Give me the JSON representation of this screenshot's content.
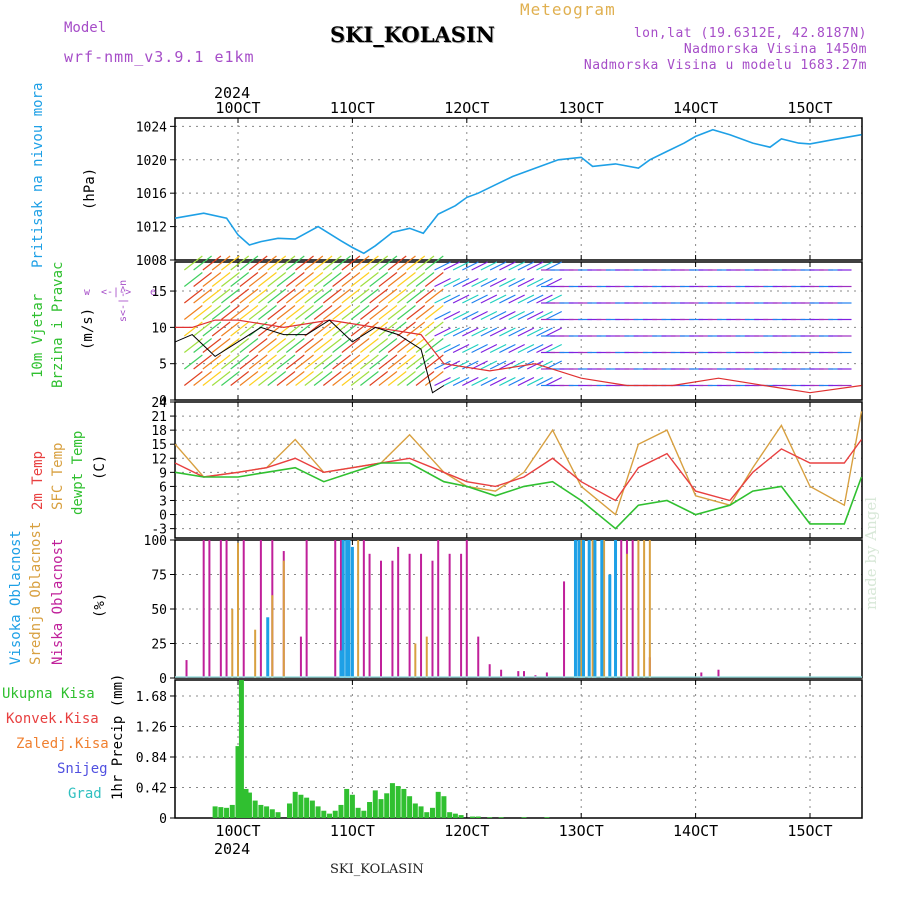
{
  "header": {
    "model_label": "Model",
    "model_value": "wrf-nmm_v3.9.1 e1km",
    "product": "Meteogram",
    "station": "SKI_KOLASIN",
    "lonlat": "lon,lat (19.6312E, 42.8187N)",
    "elevation": "Nadmorska Visina 1450m",
    "model_elevation": "Nadmorska Visina u modelu 1683.27m"
  },
  "footer": {
    "station": "SKI_KOLASIN",
    "credit": "made by Angel"
  },
  "time_axis": {
    "year": "2024",
    "labels": [
      "10OCT",
      "11OCT",
      "12OCT",
      "13OCT",
      "14OCT",
      "15OCT"
    ]
  },
  "colors": {
    "pressure": "#1ea0e6",
    "wind_speed": "#000000",
    "wind_gust": "#e03030",
    "t2m": "#e84040",
    "sfc": "#d8a040",
    "dew": "#30c030",
    "cloud_high": "#1ea0e6",
    "cloud_mid": "#d8a040",
    "cloud_low": "#c0209a",
    "precip_total": "#30c030",
    "precip_conv": "#e84040",
    "precip_frozen": "#f08030",
    "snow": "#5050e0",
    "hail": "#30c0c0"
  },
  "chart_data": [
    {
      "type": "line",
      "panel": "pressure",
      "labels": [
        "Pritisak na nivou mora",
        "(hPa)"
      ],
      "ylim": [
        1008,
        1025
      ],
      "yticks": [
        1008,
        1012,
        1016,
        1020,
        1024
      ],
      "series": [
        {
          "name": "Pritisak na nivou mora",
          "x": [
            -0.55,
            -0.3,
            -0.1,
            0.0,
            0.1,
            0.2,
            0.35,
            0.5,
            0.7,
            0.9,
            1.0,
            1.1,
            1.2,
            1.35,
            1.5,
            1.62,
            1.75,
            1.9,
            2.0,
            2.1,
            2.25,
            2.4,
            2.6,
            2.8,
            3.0,
            3.1,
            3.3,
            3.5,
            3.6,
            3.75,
            3.9,
            4.0,
            4.15,
            4.3,
            4.5,
            4.65,
            4.75,
            4.9,
            5.0,
            5.2,
            5.45
          ],
          "values": [
            1013.0,
            1013.6,
            1013.0,
            1011.0,
            1009.8,
            1010.2,
            1010.6,
            1010.5,
            1012.0,
            1010.3,
            1009.5,
            1008.8,
            1009.7,
            1011.3,
            1011.8,
            1011.2,
            1013.5,
            1014.5,
            1015.5,
            1016.0,
            1017.0,
            1018.0,
            1019.0,
            1020.0,
            1020.3,
            1019.2,
            1019.5,
            1019.0,
            1020.0,
            1021.0,
            1022.0,
            1022.8,
            1023.6,
            1023.0,
            1022.0,
            1021.5,
            1022.5,
            1022.0,
            1021.9,
            1022.4,
            1023.0
          ]
        }
      ]
    },
    {
      "type": "line",
      "panel": "wind",
      "labels": [
        "10m Vjetar",
        "Brzina i Pravac",
        "(m/s)"
      ],
      "ylim": [
        0,
        19
      ],
      "yticks": [
        0,
        5,
        10,
        15
      ],
      "direction_legend": [
        "w",
        "<-|->",
        "e",
        "s<-|->n"
      ],
      "series": [
        {
          "name": "brzina",
          "x": [
            -0.55,
            -0.4,
            -0.2,
            0.0,
            0.2,
            0.4,
            0.6,
            0.8,
            1.0,
            1.2,
            1.4,
            1.6,
            1.7,
            1.8
          ],
          "values": [
            8,
            9,
            6,
            8,
            10,
            9,
            9,
            11,
            8,
            10,
            9,
            7,
            1,
            2
          ]
        },
        {
          "name": "udar",
          "x": [
            -0.55,
            -0.4,
            -0.2,
            0.0,
            0.4,
            0.8,
            1.2,
            1.6,
            1.8,
            2.2,
            2.6,
            3.0,
            3.4,
            3.8,
            4.2,
            4.6,
            5.0,
            5.45
          ],
          "values": [
            10,
            10,
            11,
            11,
            10,
            11,
            10,
            9,
            5,
            4,
            5,
            3,
            2,
            2,
            3,
            2,
            1,
            2
          ]
        }
      ]
    },
    {
      "type": "line",
      "panel": "temperature",
      "labels": [
        "2m Temp",
        "SFC Temp",
        "dewpt Temp",
        "(C)"
      ],
      "ylim": [
        -5,
        24
      ],
      "yticks": [
        -3,
        0,
        3,
        6,
        9,
        12,
        15,
        18,
        21,
        24
      ],
      "series": [
        {
          "name": "2m Temp",
          "x": [
            -0.55,
            -0.3,
            0.0,
            0.25,
            0.5,
            0.75,
            1.0,
            1.25,
            1.5,
            1.8,
            2.0,
            2.25,
            2.5,
            2.75,
            3.0,
            3.3,
            3.5,
            3.75,
            4.0,
            4.3,
            4.5,
            4.75,
            5.0,
            5.3,
            5.45
          ],
          "values": [
            11,
            8,
            9,
            10,
            12,
            9,
            10,
            11,
            12,
            9,
            7,
            6,
            8,
            12,
            7,
            3,
            10,
            13,
            5,
            3,
            9,
            14,
            11,
            11,
            16
          ]
        },
        {
          "name": "SFC Temp",
          "x": [
            -0.55,
            -0.3,
            0.0,
            0.25,
            0.5,
            0.75,
            1.0,
            1.25,
            1.5,
            1.8,
            2.0,
            2.25,
            2.5,
            2.75,
            3.0,
            3.3,
            3.5,
            3.75,
            4.0,
            4.3,
            4.5,
            4.75,
            5.0,
            5.3,
            5.45
          ],
          "values": [
            15,
            8,
            9,
            10,
            16,
            9,
            10,
            11,
            17,
            9,
            6,
            5,
            9,
            18,
            6,
            0,
            15,
            18,
            4,
            2,
            10,
            19,
            6,
            2,
            22
          ]
        },
        {
          "name": "dewpt Temp",
          "x": [
            -0.55,
            -0.3,
            0.0,
            0.25,
            0.5,
            0.75,
            1.0,
            1.25,
            1.5,
            1.8,
            2.0,
            2.25,
            2.5,
            2.75,
            3.0,
            3.3,
            3.5,
            3.75,
            4.0,
            4.3,
            4.5,
            4.75,
            5.0,
            5.3,
            5.45
          ],
          "values": [
            9,
            8,
            8,
            9,
            10,
            7,
            9,
            11,
            11,
            7,
            6,
            4,
            6,
            7,
            3,
            -3,
            2,
            3,
            0,
            2,
            5,
            6,
            -2,
            -2,
            8
          ]
        }
      ]
    },
    {
      "type": "bar",
      "panel": "clouds",
      "labels": [
        "Visoka Oblacnost",
        "Srednja Oblacnost",
        "Niska Oblacnost",
        "(%)"
      ],
      "ylim": [
        0,
        100
      ],
      "yticks": [
        0,
        25,
        50,
        75,
        100
      ],
      "series": [
        {
          "name": "Visoka Oblacnost",
          "x": [
            0.26,
            0.9,
            0.92,
            0.95,
            0.97,
            1.0,
            2.95,
            2.98,
            3.02,
            3.07,
            3.12,
            3.18,
            3.25,
            3.3
          ],
          "values": [
            44,
            20,
            100,
            100,
            100,
            95,
            100,
            100,
            100,
            100,
            100,
            100,
            75,
            100
          ]
        },
        {
          "name": "Srednja Oblacnost",
          "x": [
            -0.05,
            0.0,
            0.15,
            0.3,
            0.4,
            0.95,
            1.05,
            1.55,
            1.65,
            3.0,
            3.1,
            3.2,
            3.3,
            3.4,
            3.5,
            3.55,
            3.6
          ],
          "values": [
            50,
            98,
            35,
            60,
            85,
            80,
            100,
            25,
            30,
            100,
            100,
            100,
            100,
            90,
            100,
            100,
            100
          ]
        },
        {
          "name": "Niska Oblacnost",
          "x": [
            -0.45,
            -0.3,
            -0.25,
            -0.15,
            -0.1,
            0.05,
            0.2,
            0.3,
            0.4,
            0.55,
            0.6,
            0.85,
            0.9,
            1.1,
            1.15,
            1.25,
            1.35,
            1.4,
            1.5,
            1.6,
            1.7,
            1.75,
            1.85,
            1.95,
            2.0,
            2.1,
            2.2,
            2.3,
            2.45,
            2.5,
            2.6,
            2.7,
            2.85,
            3.3,
            3.35,
            3.4,
            3.45,
            3.6,
            4.05,
            4.2
          ],
          "values": [
            13,
            100,
            100,
            100,
            100,
            100,
            100,
            100,
            92,
            30,
            100,
            100,
            100,
            100,
            90,
            85,
            85,
            95,
            90,
            90,
            85,
            100,
            90,
            90,
            100,
            30,
            10,
            6,
            5,
            5,
            2,
            4,
            70,
            100,
            100,
            100,
            100,
            15,
            4,
            6
          ]
        }
      ]
    },
    {
      "type": "bar",
      "panel": "precip",
      "labels": [
        "Ukupna Kisa",
        "Konvek.Kisa",
        "Zaledj.Kisa",
        "Snijeg",
        "Grad",
        "1hr Precip (mm)"
      ],
      "ylim": [
        0,
        1.9
      ],
      "yticks": [
        0,
        0.42,
        0.84,
        1.26,
        1.68
      ],
      "series": [
        {
          "name": "Ukupna Kisa",
          "x": [
            -0.2,
            -0.15,
            -0.1,
            -0.05,
            0.0,
            0.03,
            0.07,
            0.1,
            0.15,
            0.2,
            0.25,
            0.3,
            0.35,
            0.45,
            0.5,
            0.55,
            0.6,
            0.65,
            0.7,
            0.75,
            0.8,
            0.85,
            0.9,
            0.95,
            1.0,
            1.05,
            1.1,
            1.15,
            1.2,
            1.25,
            1.3,
            1.35,
            1.4,
            1.45,
            1.5,
            1.55,
            1.6,
            1.65,
            1.7,
            1.75,
            1.8,
            1.85,
            1.9,
            1.95,
            2.05,
            2.1,
            2.2,
            2.3,
            2.5,
            2.7
          ],
          "values": [
            0.16,
            0.15,
            0.14,
            0.18,
            0.99,
            1.9,
            0.4,
            0.35,
            0.24,
            0.18,
            0.16,
            0.12,
            0.08,
            0.2,
            0.36,
            0.32,
            0.28,
            0.24,
            0.16,
            0.1,
            0.06,
            0.1,
            0.18,
            0.4,
            0.32,
            0.14,
            0.1,
            0.22,
            0.38,
            0.26,
            0.34,
            0.48,
            0.44,
            0.4,
            0.3,
            0.2,
            0.16,
            0.08,
            0.14,
            0.36,
            0.3,
            0.08,
            0.06,
            0.04,
            0.02,
            0.02,
            0.01,
            0.01,
            0.01,
            0.01
          ]
        }
      ]
    }
  ]
}
